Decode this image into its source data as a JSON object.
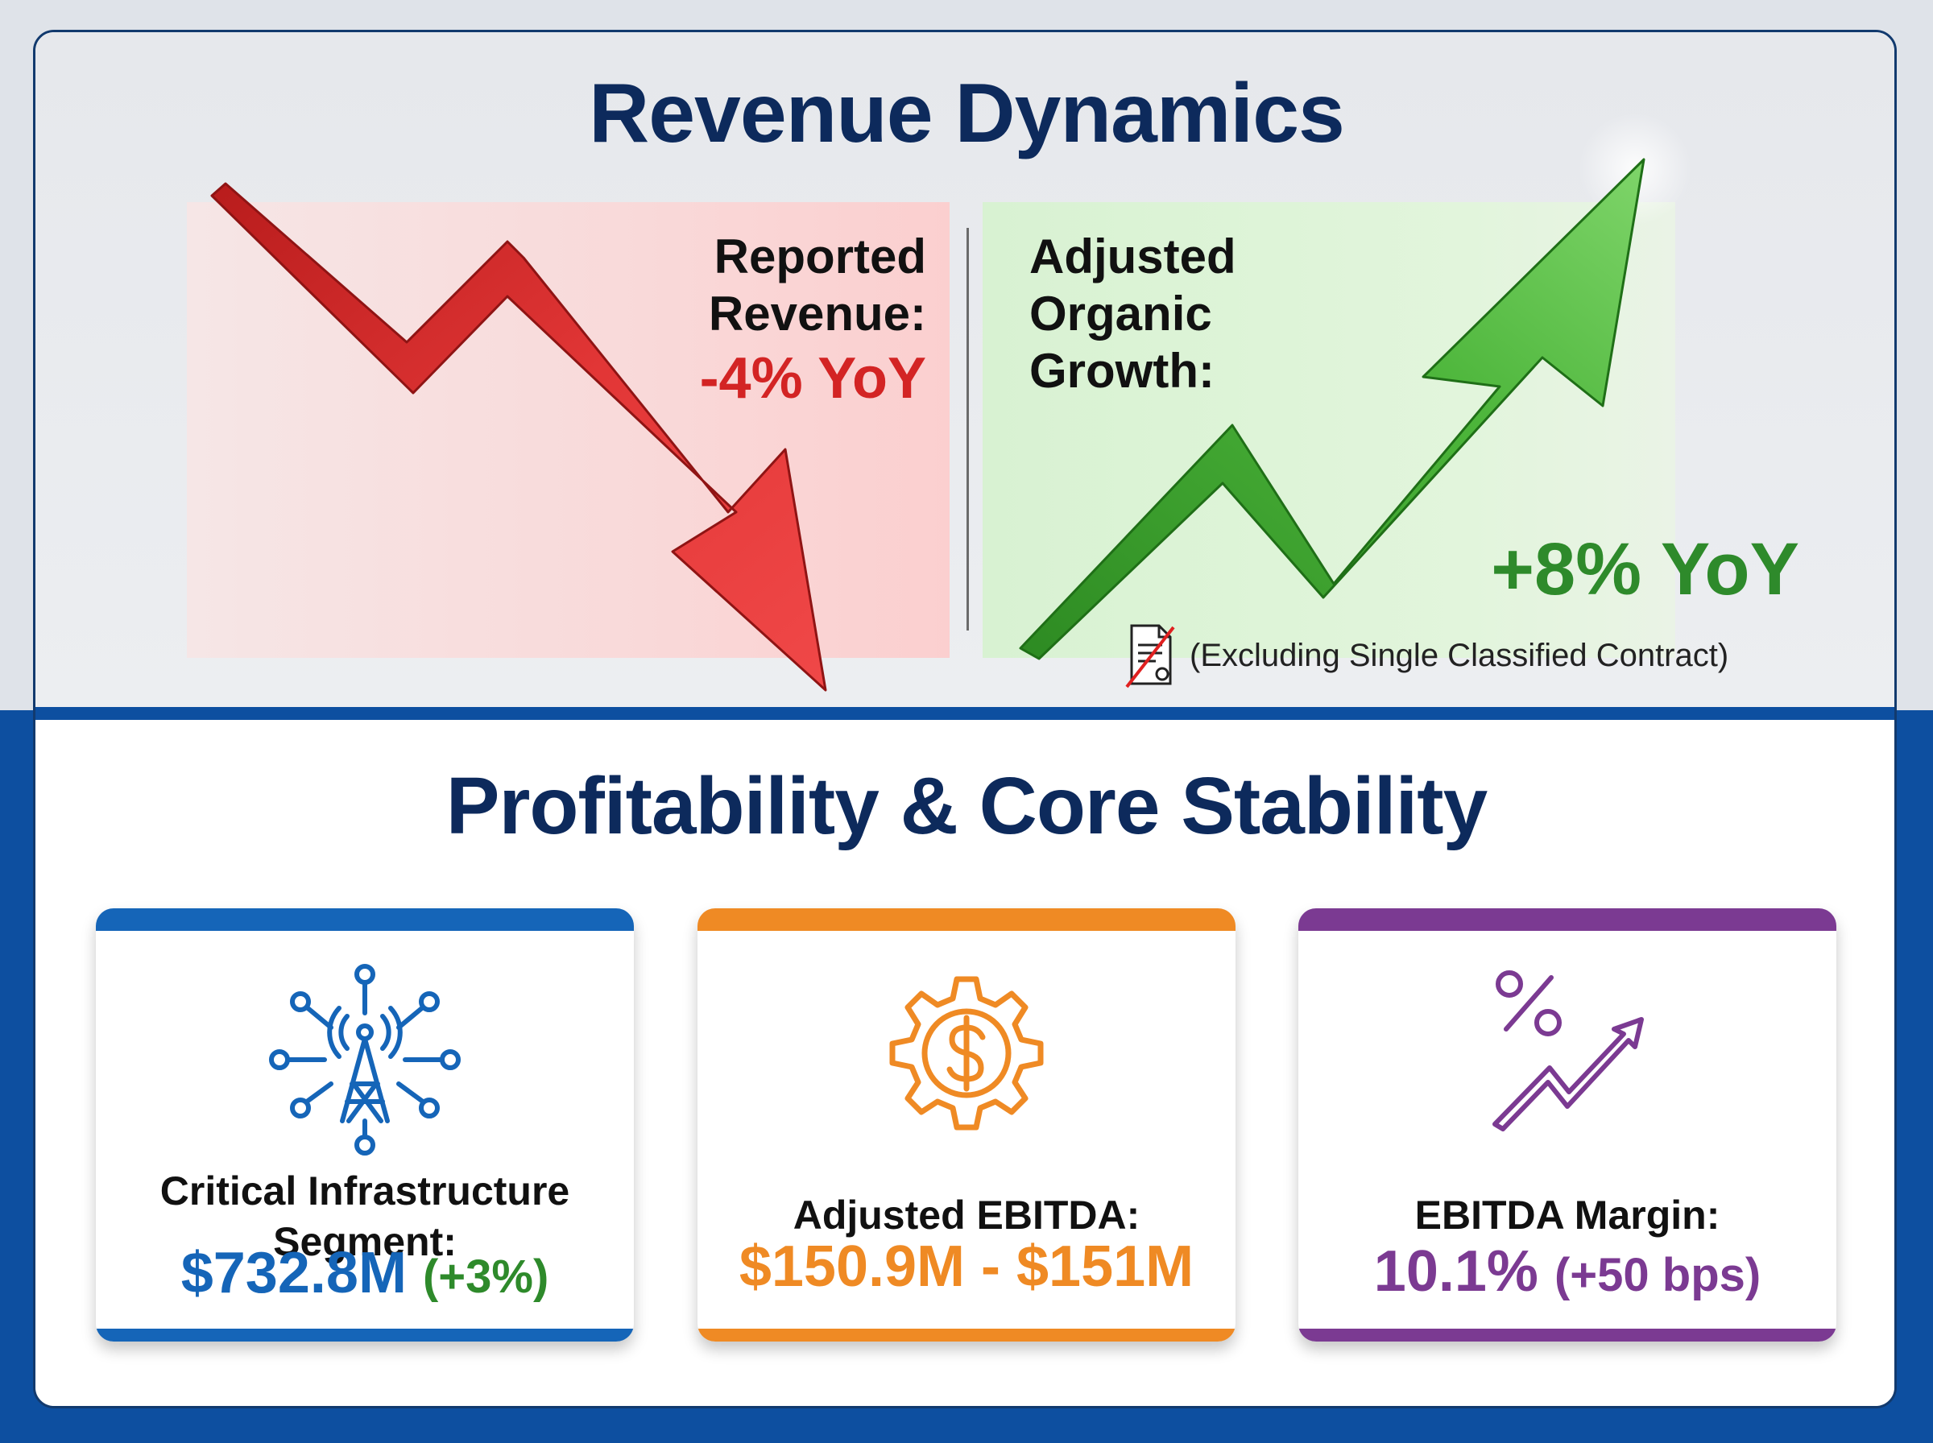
{
  "top_section": {
    "title": "Revenue Dynamics",
    "reported": {
      "label_line1": "Reported",
      "label_line2": "Revenue:",
      "value": "-4% YoY",
      "color": "#d32424"
    },
    "organic": {
      "label_line1": "Adjusted",
      "label_line2": "Organic",
      "label_line3": "Growth:",
      "value": "+8% YoY",
      "note": "(Excluding Single Classified Contract)",
      "note_icon": "crossed-document-icon",
      "color": "#2e8a2b"
    }
  },
  "bottom_section": {
    "title": "Profitability & Core Stability",
    "cards": [
      {
        "icon": "network-tower-icon",
        "label_line1": "Critical Infrastructure",
        "label_line2": "Segment:",
        "value": "$732.8M",
        "change": "(+3%)",
        "accent": "#1565b8",
        "change_color": "#2e8a2b"
      },
      {
        "icon": "gear-dollar-icon",
        "label_line1": "Adjusted EBITDA:",
        "value": "$150.9M - $151M",
        "accent": "#ef8a24"
      },
      {
        "icon": "percent-growth-icon",
        "label_line1": "EBITDA Margin:",
        "value": "10.1%",
        "change": "(+50 bps)",
        "accent": "#7b3a92"
      }
    ]
  }
}
